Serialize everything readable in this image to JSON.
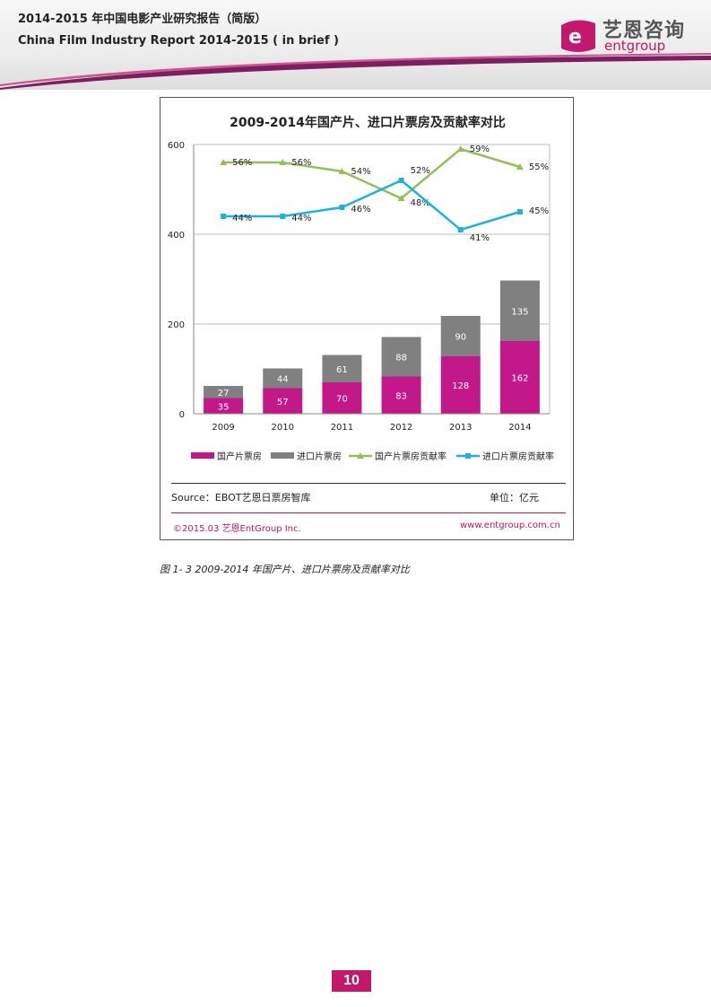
{
  "header": {
    "title_cn": "2014-2015 年中国电影产业研究报告（简版）",
    "title_en": "China Film Industry Report 2014-2015 ( in brief )"
  },
  "logo": {
    "cn": "艺恩咨询",
    "en": "entgroup"
  },
  "colors": {
    "domestic": "#c2188a",
    "imported": "#808080",
    "domestic_rate": "#92c05a",
    "imported_rate": "#1fb0e0",
    "brand": "#c2186e"
  },
  "chart_data": {
    "type": "bar",
    "title": "2009-2014年国产片、进口片票房及贡献率对比",
    "categories": [
      "2009",
      "2010",
      "2011",
      "2012",
      "2013",
      "2014"
    ],
    "ylim": [
      0,
      600
    ],
    "yticks": [
      "0",
      "200",
      "400",
      "600"
    ],
    "grid": true,
    "series": [
      {
        "name": "国产片票房",
        "kind": "stacked-bar",
        "values": [
          35,
          57,
          70,
          83,
          128,
          162
        ]
      },
      {
        "name": "进口片票房",
        "kind": "stacked-bar",
        "values": [
          27,
          44,
          61,
          88,
          90,
          135
        ]
      },
      {
        "name": "国产片票房贡献率",
        "kind": "line",
        "values": [
          56,
          56,
          54,
          48,
          59,
          55
        ],
        "labels": [
          "56%",
          "56%",
          "54%",
          "48%",
          "59%",
          "55%"
        ]
      },
      {
        "name": "进口片票房贡献率",
        "kind": "line",
        "values": [
          44,
          44,
          46,
          52,
          41,
          45
        ],
        "labels": [
          "44%",
          "44%",
          "46%",
          "52%",
          "41%",
          "45%"
        ]
      }
    ],
    "legend": "bottom"
  },
  "source": {
    "text": "Source：EBOT艺恩日票房智库",
    "unit": "单位：亿元"
  },
  "footer": {
    "copyright": "©2015.03  艺恩EntGroup Inc.",
    "website": "www.entgroup.com.cn"
  },
  "caption": "图 1- 3 2009-2014 年国产片、进口片票房及贡献率对比",
  "page_number": "10"
}
